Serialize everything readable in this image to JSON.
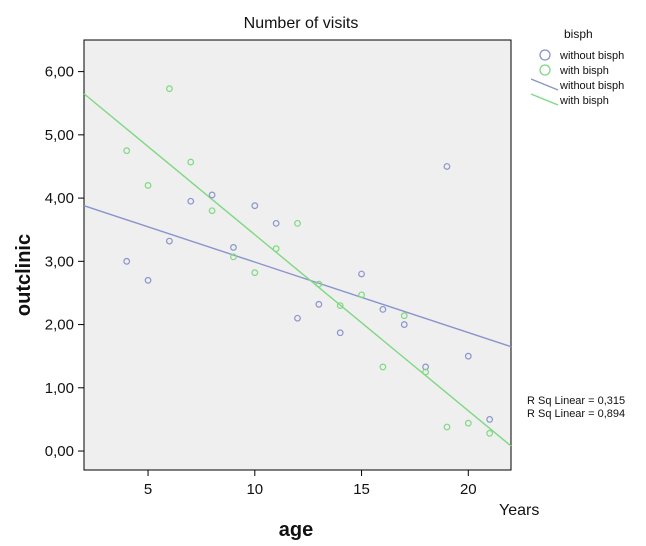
{
  "chart_data": {
    "type": "scatter",
    "title": "Number of visits",
    "xlabel": "age",
    "ylabel": "outclinic",
    "x_unit_label": "Years",
    "xlim": [
      2,
      22
    ],
    "ylim": [
      -0.3,
      6.5
    ],
    "x_ticks": [
      5,
      10,
      15,
      20
    ],
    "y_ticks": [
      0,
      1,
      2,
      3,
      4,
      5,
      6
    ],
    "x_tick_labels": [
      "5",
      "10",
      "15",
      "20"
    ],
    "y_tick_labels": [
      "0,00",
      "1,00",
      "2,00",
      "3,00",
      "4,00",
      "5,00",
      "6,00"
    ],
    "plot_background": "#efefef",
    "grid": false,
    "legend": {
      "title": "bisph",
      "position": "top-right",
      "entries": [
        {
          "label": "without bisph",
          "kind": "marker",
          "series": "without"
        },
        {
          "label": "with bisph",
          "kind": "marker",
          "series": "with"
        },
        {
          "label": "without bisph",
          "kind": "line",
          "series": "without"
        },
        {
          "label": "with bisph",
          "kind": "line",
          "series": "with"
        }
      ]
    },
    "series": [
      {
        "name": "without bisph",
        "key": "without",
        "color": "#8a94cc",
        "points": [
          {
            "x": 4,
            "y": 3.0
          },
          {
            "x": 5,
            "y": 2.7
          },
          {
            "x": 6,
            "y": 3.32
          },
          {
            "x": 7,
            "y": 3.95
          },
          {
            "x": 8,
            "y": 4.05
          },
          {
            "x": 9,
            "y": 3.22
          },
          {
            "x": 10,
            "y": 3.88
          },
          {
            "x": 11,
            "y": 3.6
          },
          {
            "x": 12,
            "y": 2.1
          },
          {
            "x": 13,
            "y": 2.32
          },
          {
            "x": 14,
            "y": 1.87
          },
          {
            "x": 15,
            "y": 2.8
          },
          {
            "x": 16,
            "y": 2.24
          },
          {
            "x": 17,
            "y": 2.0
          },
          {
            "x": 18,
            "y": 1.33
          },
          {
            "x": 19,
            "y": 4.5
          },
          {
            "x": 20,
            "y": 1.5
          },
          {
            "x": 21,
            "y": 0.5
          }
        ],
        "fit_line": {
          "x": [
            2,
            22
          ],
          "y": [
            3.88,
            1.65
          ]
        }
      },
      {
        "name": "with bisph",
        "key": "with",
        "color": "#7fd882",
        "points": [
          {
            "x": 4,
            "y": 4.75
          },
          {
            "x": 5,
            "y": 4.2
          },
          {
            "x": 6,
            "y": 5.73
          },
          {
            "x": 7,
            "y": 4.57
          },
          {
            "x": 8,
            "y": 3.8
          },
          {
            "x": 9,
            "y": 3.07
          },
          {
            "x": 10,
            "y": 2.82
          },
          {
            "x": 11,
            "y": 3.2
          },
          {
            "x": 12,
            "y": 3.6
          },
          {
            "x": 13,
            "y": 2.64
          },
          {
            "x": 14,
            "y": 2.3
          },
          {
            "x": 15,
            "y": 2.47
          },
          {
            "x": 16,
            "y": 1.33
          },
          {
            "x": 17,
            "y": 2.14
          },
          {
            "x": 18,
            "y": 1.25
          },
          {
            "x": 19,
            "y": 0.38
          },
          {
            "x": 20,
            "y": 0.44
          },
          {
            "x": 21,
            "y": 0.28
          }
        ],
        "fit_line": {
          "x": [
            2,
            22
          ],
          "y": [
            5.65,
            0.08
          ]
        }
      }
    ],
    "annotations": [
      {
        "text": "R Sq Linear = 0,315"
      },
      {
        "text": "R Sq Linear = 0,894"
      }
    ]
  }
}
